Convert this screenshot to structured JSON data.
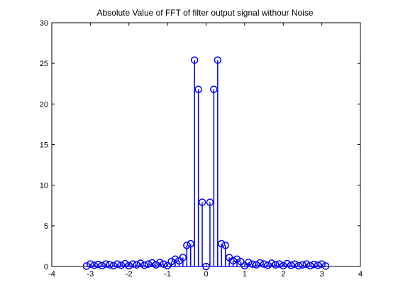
{
  "chart_data": {
    "type": "stem",
    "title": "Absolute Value of FFT of filter output signal withour Noise",
    "xlabel": "",
    "ylabel": "",
    "xlim": [
      -4,
      4
    ],
    "ylim": [
      0,
      30
    ],
    "xticks": [
      "-4",
      "-3",
      "-2",
      "-1",
      "0",
      "1",
      "2",
      "3",
      "4"
    ],
    "yticks": [
      "0",
      "5",
      "10",
      "15",
      "20",
      "25",
      "30"
    ],
    "grid": false,
    "marker": "circle",
    "color": "#0000ff",
    "x": [
      -3.1,
      -3.0,
      -2.9,
      -2.8,
      -2.7,
      -2.6,
      -2.5,
      -2.4,
      -2.3,
      -2.2,
      -2.1,
      -2.0,
      -1.9,
      -1.8,
      -1.7,
      -1.6,
      -1.5,
      -1.4,
      -1.3,
      -1.2,
      -1.1,
      -1.0,
      -0.9,
      -0.8,
      -0.7,
      -0.6,
      -0.5,
      -0.4,
      -0.3,
      -0.2,
      -0.1,
      0.0,
      0.1,
      0.2,
      0.3,
      0.4,
      0.5,
      0.6,
      0.7,
      0.8,
      0.9,
      1.0,
      1.1,
      1.2,
      1.3,
      1.4,
      1.5,
      1.6,
      1.7,
      1.8,
      1.9,
      2.0,
      2.1,
      2.2,
      2.3,
      2.4,
      2.5,
      2.6,
      2.7,
      2.8,
      2.9,
      3.0,
      3.1
    ],
    "y": [
      0.05,
      0.3,
      0.15,
      0.25,
      0.1,
      0.3,
      0.2,
      0.1,
      0.3,
      0.15,
      0.35,
      0.1,
      0.3,
      0.2,
      0.4,
      0.15,
      0.3,
      0.45,
      0.2,
      0.5,
      0.3,
      0.1,
      0.6,
      0.9,
      0.7,
      1.1,
      2.6,
      2.8,
      25.4,
      21.8,
      7.9,
      0.0,
      7.9,
      21.8,
      25.4,
      2.8,
      2.6,
      1.1,
      0.7,
      0.9,
      0.6,
      0.1,
      0.5,
      0.3,
      0.2,
      0.45,
      0.3,
      0.15,
      0.4,
      0.2,
      0.3,
      0.1,
      0.35,
      0.15,
      0.3,
      0.1,
      0.2,
      0.3,
      0.1,
      0.25,
      0.15,
      0.3,
      0.05
    ]
  }
}
